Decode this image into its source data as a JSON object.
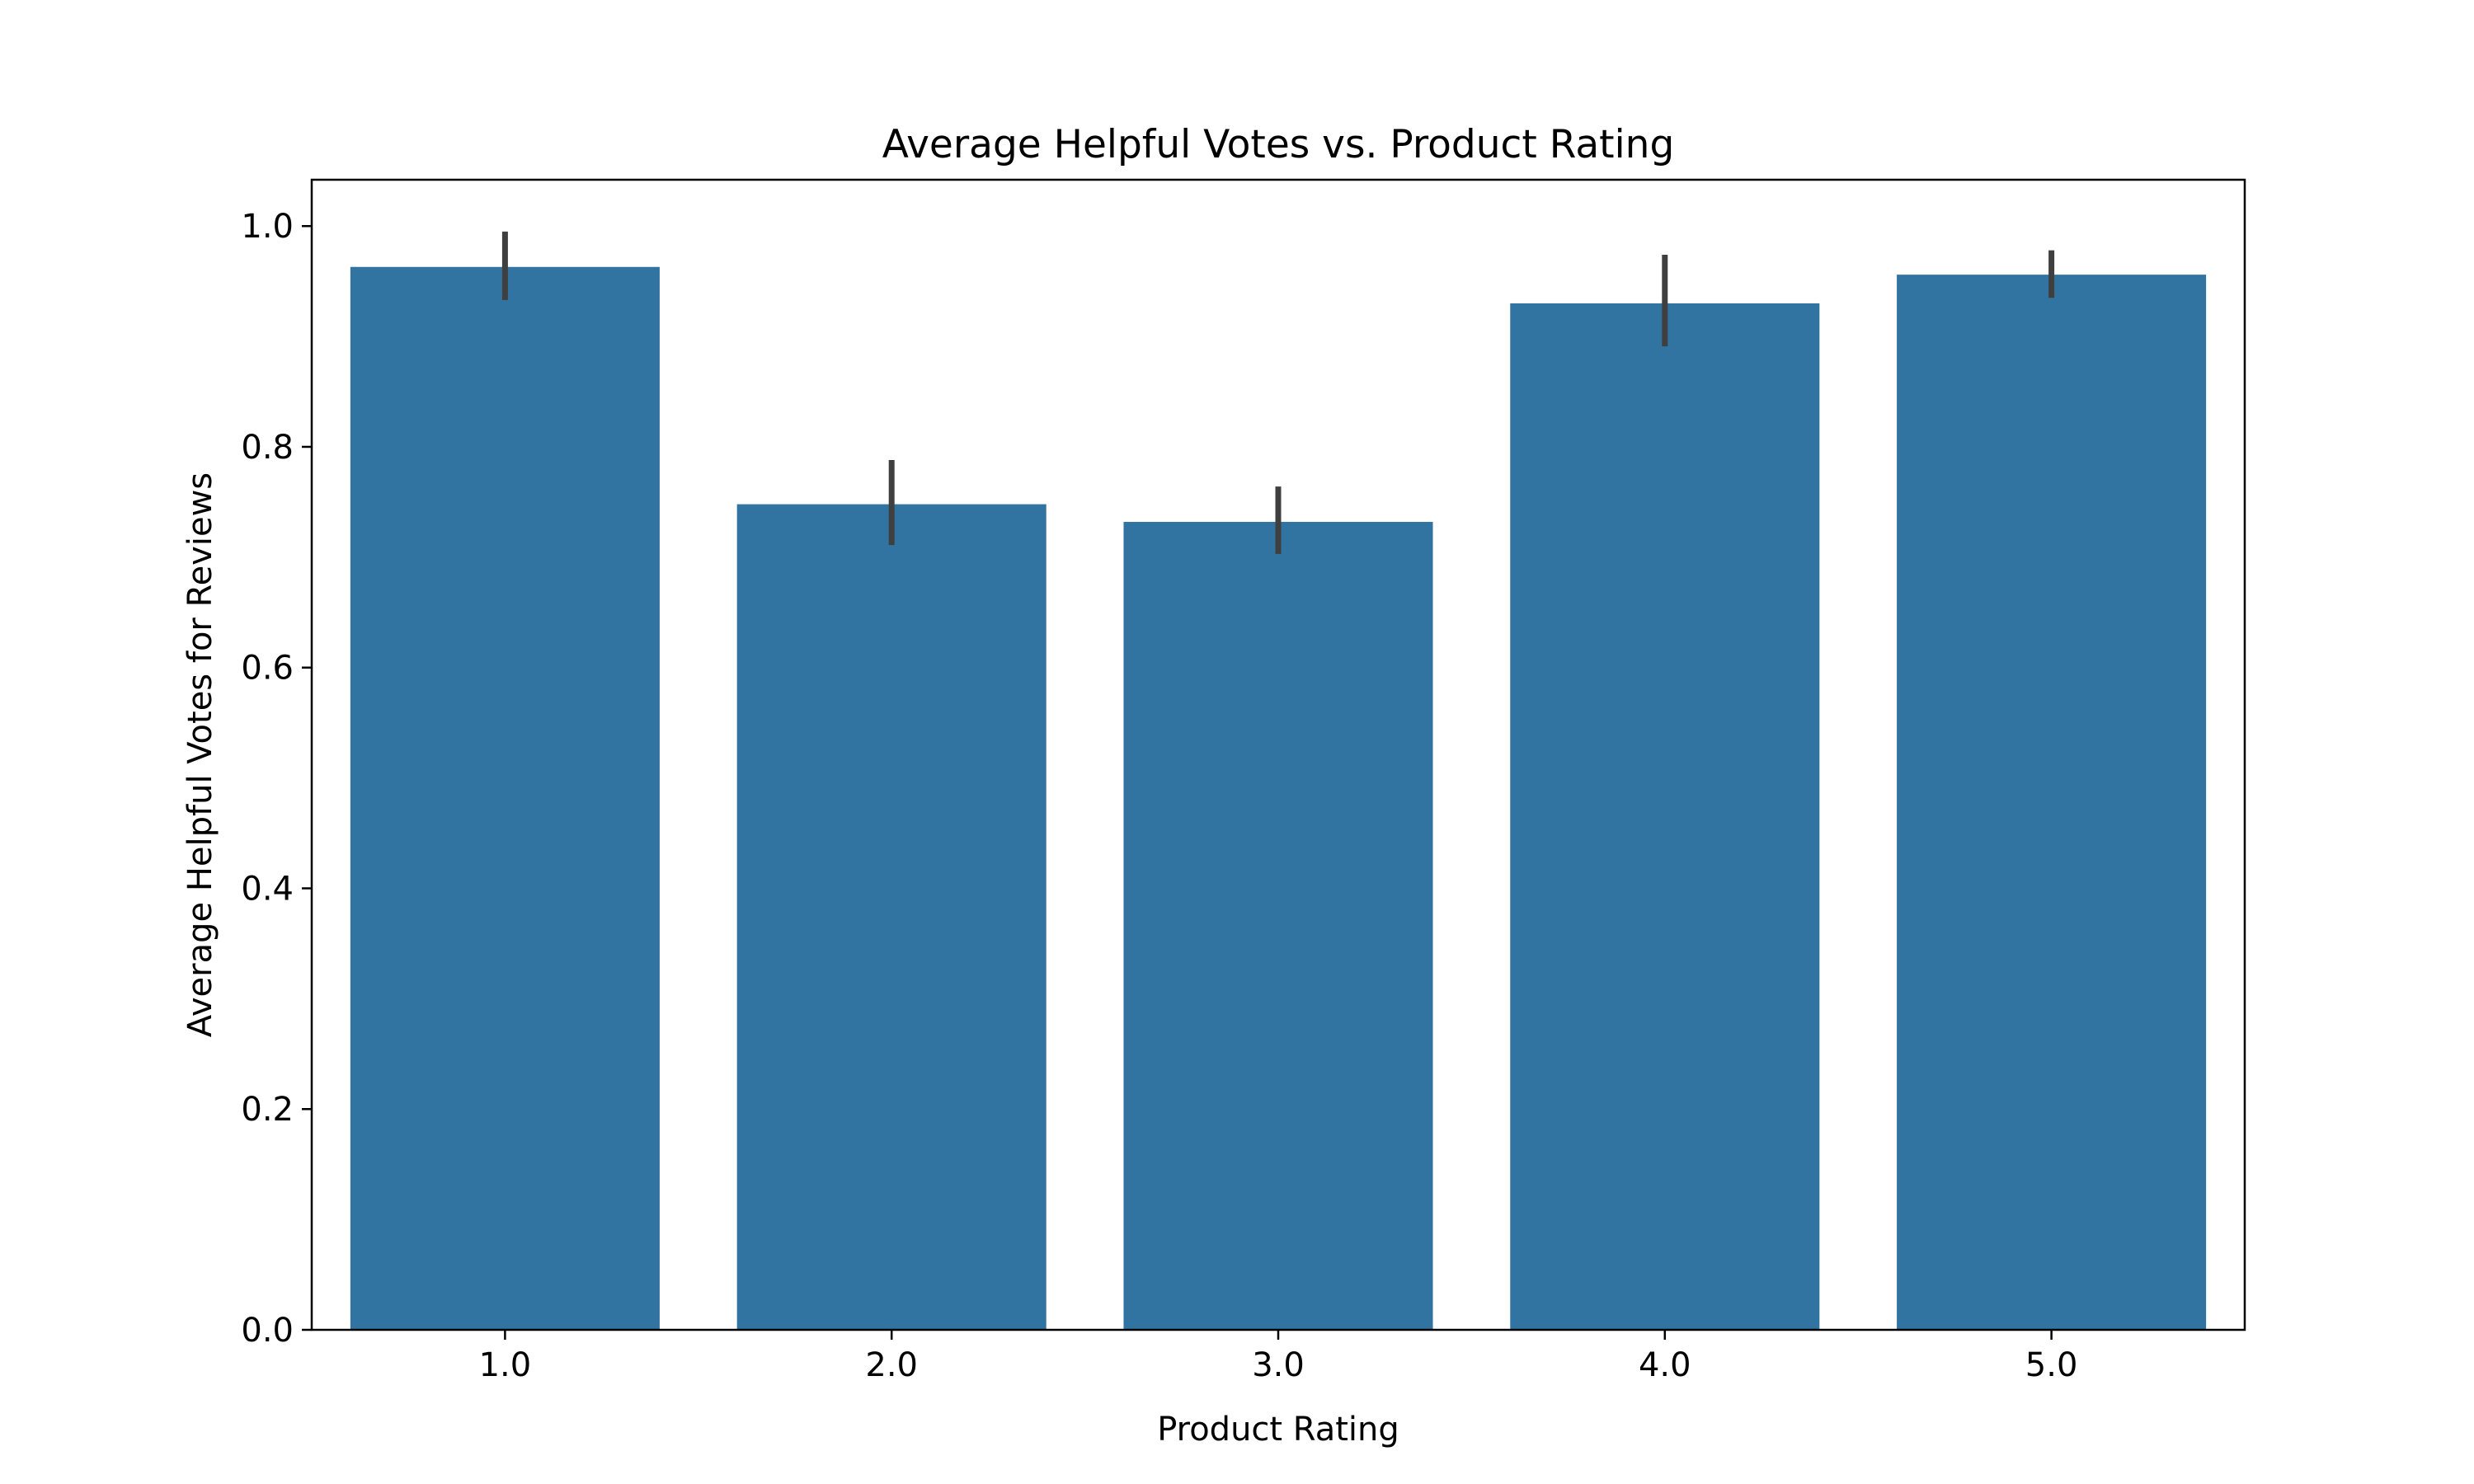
{
  "chart_data": {
    "type": "bar",
    "title": "Average Helpful Votes vs. Product Rating",
    "xlabel": "Product Rating",
    "ylabel": "Average Helpful Votes for Reviews",
    "categories": [
      "1.0",
      "2.0",
      "3.0",
      "4.0",
      "5.0"
    ],
    "values": [
      0.963,
      0.748,
      0.732,
      0.93,
      0.956
    ],
    "error_bars": [
      [
        0.933,
        0.995
      ],
      [
        0.711,
        0.788
      ],
      [
        0.703,
        0.764
      ],
      [
        0.891,
        0.974
      ],
      [
        0.935,
        0.978
      ]
    ],
    "yticks": [
      "0.0",
      "0.2",
      "0.4",
      "0.6",
      "0.8",
      "1.0"
    ],
    "ylim": [
      0,
      1.042
    ],
    "grid": false,
    "colors": {
      "bar": "#3274a1",
      "error_bar": "#3f3f3f",
      "axes": "#000000"
    }
  }
}
